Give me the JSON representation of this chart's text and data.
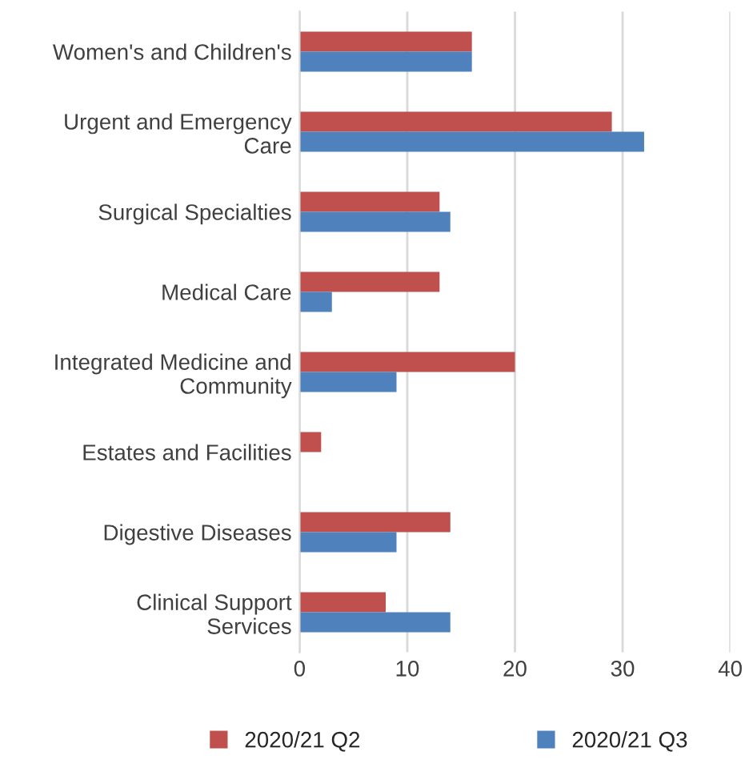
{
  "chart_data": {
    "type": "bar",
    "orientation": "horizontal",
    "categories": [
      "Women's and Children's",
      "Urgent and Emergency Care",
      "Surgical Specialties",
      "Medical Care",
      "Integrated Medicine and Community",
      "Estates and Facilities",
      "Digestive Diseases",
      "Clinical Support Services"
    ],
    "series": [
      {
        "name": "2020/21 Q2",
        "color": "#c0504d",
        "values": [
          16,
          29,
          13,
          13,
          20,
          2,
          14,
          8
        ]
      },
      {
        "name": "2020/21 Q3",
        "color": "#4f81bd",
        "values": [
          16,
          32,
          14,
          3,
          9,
          0,
          9,
          14
        ]
      }
    ],
    "xlim": [
      0,
      40
    ],
    "xticks": [
      0,
      10,
      20,
      30,
      40
    ],
    "grid": "x",
    "legend": "bottom"
  }
}
